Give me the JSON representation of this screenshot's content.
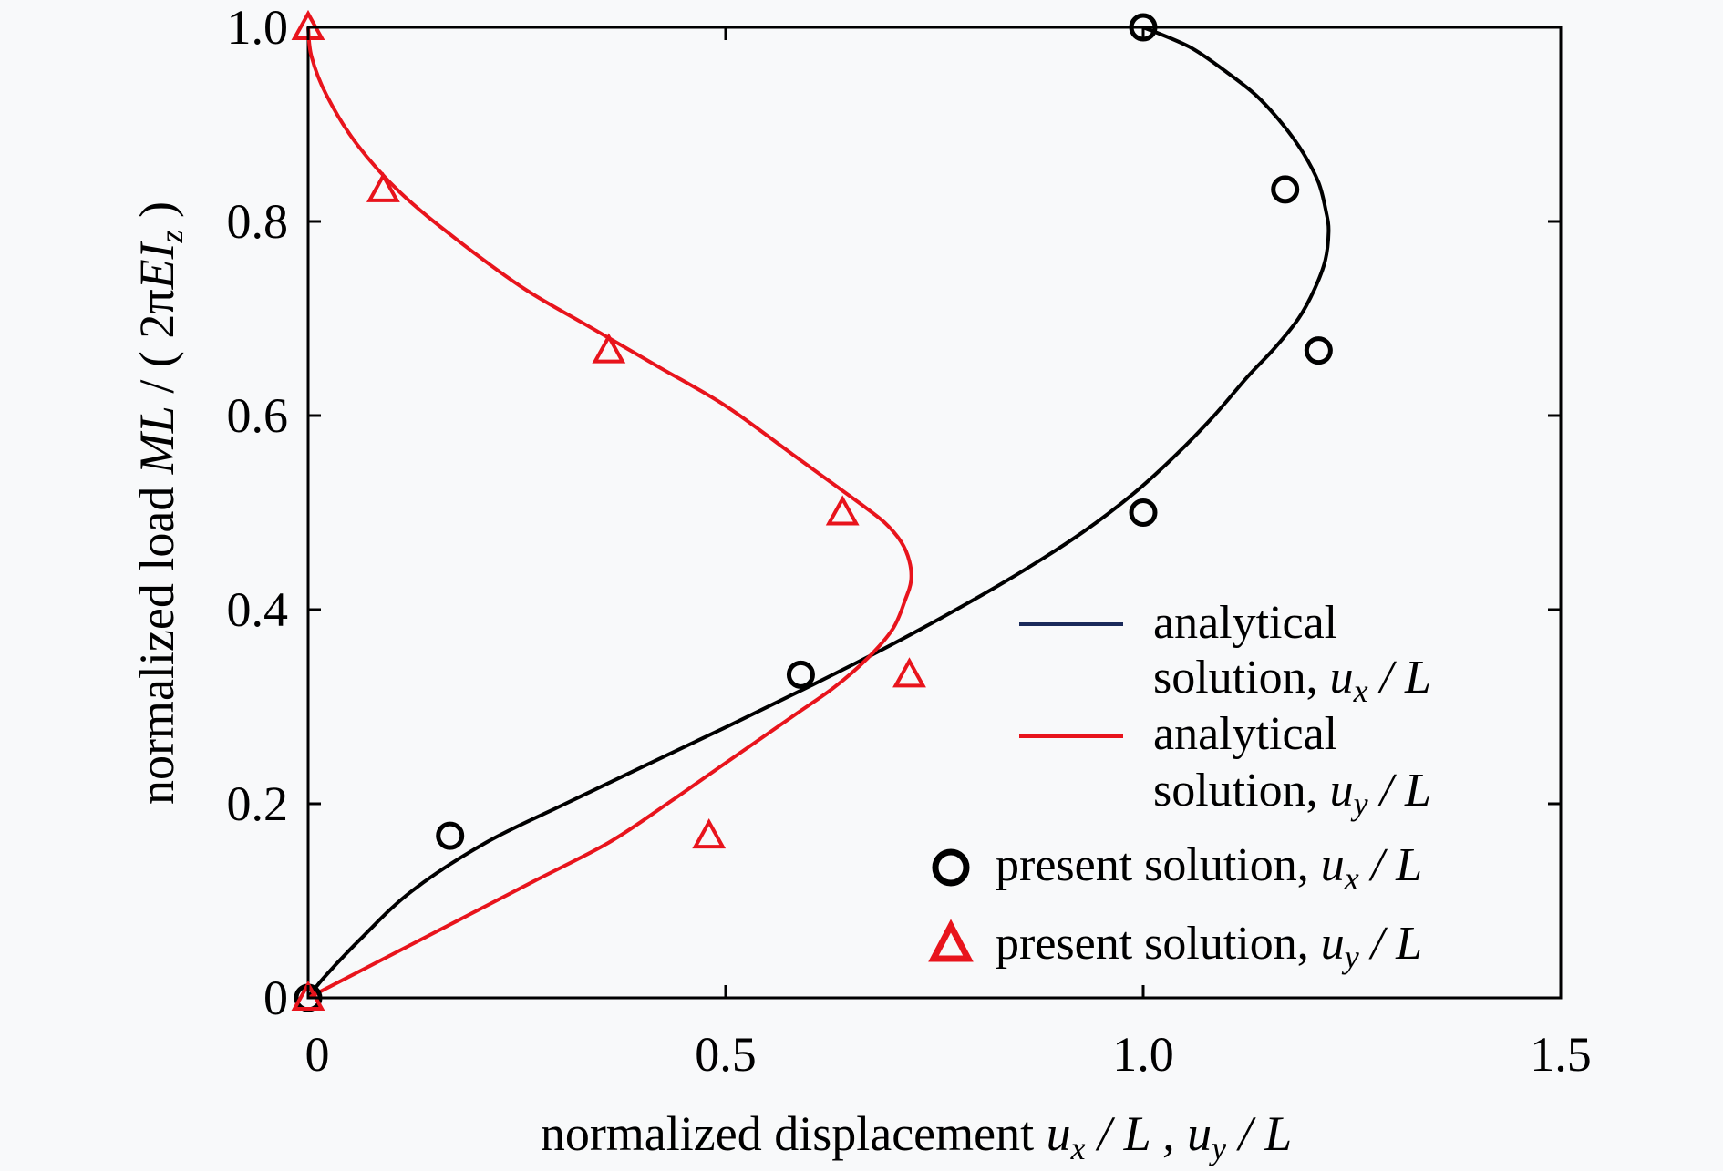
{
  "chart_data": {
    "type": "line",
    "xlabel": {
      "prefix": "normalized displacement ",
      "v1": "u",
      "s1": "x",
      "m1": " / L , ",
      "v2": "u",
      "s2": "y",
      "m2": " / L"
    },
    "ylabel": {
      "prefix": "normalized load ",
      "v": "ML",
      "m": " / ( 2π",
      "v2": "EI",
      "sub": "z",
      "suffix": " )"
    },
    "xlim": [
      0,
      1.5
    ],
    "ylim": [
      0,
      1.0
    ],
    "xticks": [
      {
        "value": 0,
        "label": "0"
      },
      {
        "value": 0.5,
        "label": "0.5"
      },
      {
        "value": 1.0,
        "label": "1.0"
      },
      {
        "value": 1.5,
        "label": "1.5"
      }
    ],
    "yticks": [
      {
        "value": 0,
        "label": "0"
      },
      {
        "value": 0.2,
        "label": "0.2"
      },
      {
        "value": 0.4,
        "label": "0.4"
      },
      {
        "value": 0.6,
        "label": "0.6"
      },
      {
        "value": 0.8,
        "label": "0.8"
      },
      {
        "value": 1.0,
        "label": "1.0"
      }
    ],
    "grid": false,
    "legend_placement": "bottom-right",
    "series": [
      {
        "kind": "line",
        "color": "#000000",
        "legend": {
          "text": "analytical",
          "text2": "solution, ",
          "var": "u",
          "sub": "x",
          "tail": " / L"
        },
        "x": [
          0,
          0.018,
          0.062,
          0.124,
          0.213,
          0.308,
          0.405,
          0.503,
          0.598,
          0.69,
          0.776,
          0.856,
          0.928,
          0.989,
          1.04,
          1.085,
          1.125,
          1.158,
          1.186,
          1.205,
          1.218,
          1.222,
          1.219,
          1.21,
          1.192,
          1.167,
          1.135,
          1.098,
          1.055,
          1.0
        ],
        "y": [
          0,
          0.02,
          0.06,
          0.11,
          0.16,
          0.2,
          0.24,
          0.28,
          0.32,
          0.36,
          0.4,
          0.44,
          0.48,
          0.52,
          0.56,
          0.6,
          0.64,
          0.67,
          0.7,
          0.73,
          0.76,
          0.79,
          0.81,
          0.84,
          0.87,
          0.9,
          0.93,
          0.955,
          0.98,
          1.0
        ]
      },
      {
        "kind": "line",
        "color": "#e8141c",
        "legend": {
          "text": "analytical",
          "text2": "solution, ",
          "var": "u",
          "sub": "y",
          "tail": " / L"
        },
        "x": [
          0,
          0.09,
          0.18,
          0.27,
          0.36,
          0.43,
          0.48,
          0.53,
          0.58,
          0.63,
          0.67,
          0.7,
          0.715,
          0.722,
          0.72,
          0.71,
          0.69,
          0.66,
          0.628,
          0.58,
          0.5,
          0.42,
          0.34,
          0.26,
          0.18,
          0.11,
          0.058,
          0.022,
          0.004,
          0
        ],
        "y": [
          0,
          0.04,
          0.08,
          0.12,
          0.16,
          0.2,
          0.23,
          0.26,
          0.29,
          0.32,
          0.35,
          0.38,
          0.41,
          0.43,
          0.45,
          0.47,
          0.49,
          0.51,
          0.53,
          0.56,
          0.61,
          0.65,
          0.69,
          0.73,
          0.78,
          0.83,
          0.88,
          0.93,
          0.97,
          1.0
        ]
      },
      {
        "kind": "scatter",
        "marker": "circle",
        "color": "#000000",
        "legend": {
          "text": "present solution, ",
          "var": "u",
          "sub": "x",
          "tail": " / L"
        },
        "x": [
          0,
          0.17,
          0.59,
          1.0,
          1.21,
          1.17,
          1.0
        ],
        "y": [
          0,
          0.167,
          0.333,
          0.5,
          0.667,
          0.833,
          1.0
        ]
      },
      {
        "kind": "scatter",
        "marker": "triangle",
        "color": "#e8141c",
        "legend": {
          "text": "present solution, ",
          "var": "u",
          "sub": "y",
          "tail": " / L"
        },
        "x": [
          0,
          0.48,
          0.72,
          0.64,
          0.36,
          0.09,
          0
        ],
        "y": [
          0,
          0.167,
          0.333,
          0.5,
          0.667,
          0.833,
          1.0
        ]
      }
    ]
  }
}
